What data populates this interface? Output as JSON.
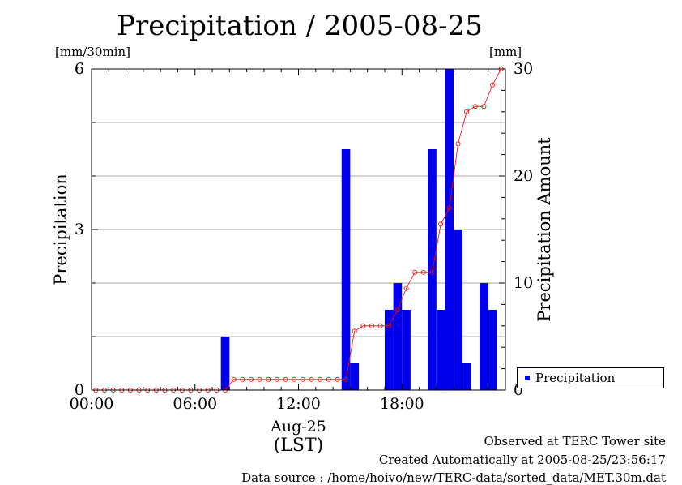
{
  "title": "Precipitation / 2005-08-25",
  "left_unit": "[mm/30min]",
  "right_unit": "[mm]",
  "legend": {
    "label": "Precipitation",
    "color": "#0000ee"
  },
  "footer": {
    "line1": "Observed at TERC Tower site",
    "line2": "Created Automatically at 2005-08-25/23:56:17",
    "line3": "Data source : /home/hoivo/new/TERC-data/sorted_data/MET.30m.dat"
  },
  "chart_data": {
    "type": "bar",
    "title": "Precipitation / 2005-08-25",
    "xlabel": "(LST)",
    "x_date_label": "Aug-25",
    "x_ticks": [
      "00:00",
      "06:00",
      "12:00",
      "18:00"
    ],
    "ylabel": "Precipitation",
    "ylabel_right": "Precipitation Amount",
    "ylim": [
      0,
      6
    ],
    "ylim_right": [
      0,
      30
    ],
    "y_ticks": [
      0,
      3,
      6
    ],
    "y_ticks_right": [
      0,
      10,
      20,
      30
    ],
    "grid": true,
    "legend_position": "bottom-right",
    "x_hours": [
      0,
      0.5,
      1,
      1.5,
      2,
      2.5,
      3,
      3.5,
      4,
      4.5,
      5,
      5.5,
      6,
      6.5,
      7,
      7.5,
      8,
      8.5,
      9,
      9.5,
      10,
      10.5,
      11,
      11.5,
      12,
      12.5,
      13,
      13.5,
      14,
      14.5,
      15,
      15.5,
      16,
      16.5,
      17,
      17.5,
      18,
      18.5,
      19,
      19.5,
      20,
      20.5,
      21,
      21.5,
      22,
      22.5,
      23,
      23.5
    ],
    "series": [
      {
        "name": "Precipitation",
        "kind": "bar",
        "axis": "left",
        "color": "#0000ee",
        "values": [
          0,
          0,
          0,
          0,
          0,
          0,
          0,
          0,
          0,
          0,
          0,
          0,
          0,
          0,
          0,
          1,
          0,
          0,
          0,
          0,
          0,
          0,
          0,
          0,
          0,
          0,
          0,
          0,
          0,
          4.5,
          0.5,
          0,
          0,
          0,
          1.5,
          2,
          1.5,
          0,
          0,
          4.5,
          1.5,
          6,
          3,
          0.5,
          0,
          2,
          1.5,
          0
        ]
      },
      {
        "kind": "line",
        "axis": "right",
        "color": "#ff0000",
        "values": [
          0,
          0,
          0,
          0,
          0,
          0,
          0,
          0,
          0,
          0,
          0,
          0,
          0,
          0,
          0,
          0,
          1,
          1,
          1,
          1,
          1,
          1,
          1,
          1,
          1,
          1,
          1,
          1,
          1,
          1,
          5.5,
          6,
          6,
          6,
          6,
          7.5,
          9.5,
          11,
          11,
          11,
          15.5,
          17,
          23,
          26,
          26.5,
          26.5,
          28.5,
          30
        ]
      }
    ]
  }
}
